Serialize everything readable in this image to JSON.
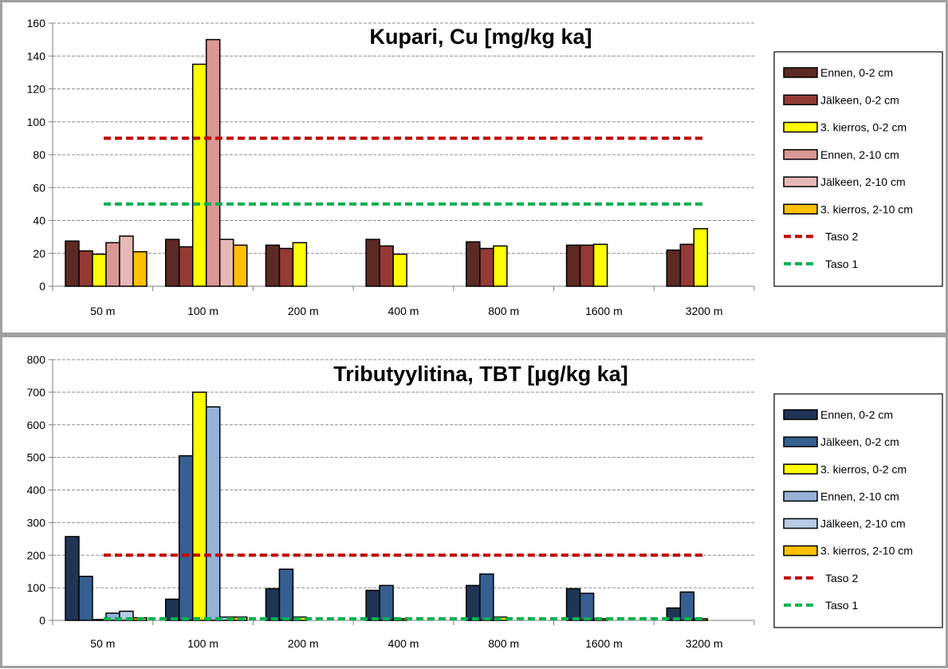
{
  "chart_data": [
    {
      "type": "bar",
      "title": "Kupari, Cu [mg/kg ka]",
      "categories": [
        "50 m",
        "100 m",
        "200 m",
        "400 m",
        "800 m",
        "1600 m",
        "3200 m"
      ],
      "ylim": [
        0,
        160
      ],
      "yticks": [
        0,
        20,
        40,
        60,
        80,
        100,
        120,
        140,
        160
      ],
      "grid": true,
      "legend_position": "right",
      "series": [
        {
          "name": "Ennen, 0-2 cm",
          "color": "#5c2a22",
          "values": [
            27.5,
            28.5,
            25,
            28.5,
            27,
            25,
            22
          ]
        },
        {
          "name": "Jälkeen, 0-2 cm",
          "color": "#953a34",
          "values": [
            21.5,
            24,
            23,
            24.5,
            23,
            25,
            25.5
          ]
        },
        {
          "name": "3. kierros, 0-2 cm",
          "color": "#ffff00",
          "values": [
            19.5,
            135,
            26.5,
            19.5,
            24.5,
            25.5,
            35
          ]
        },
        {
          "name": "Ennen, 2-10 cm",
          "color": "#d99795",
          "values": [
            26.5,
            150,
            null,
            null,
            null,
            null,
            null
          ]
        },
        {
          "name": "Jälkeen, 2-10 cm",
          "color": "#e6b9b8",
          "values": [
            30.5,
            28.5,
            null,
            null,
            null,
            null,
            null
          ]
        },
        {
          "name": "3. kierros, 2-10 cm",
          "color": "#ffc000",
          "values": [
            21,
            25,
            null,
            null,
            null,
            null,
            null
          ]
        }
      ],
      "reference_lines": [
        {
          "name": "Taso 2",
          "color": "#c00000",
          "value": 90
        },
        {
          "name": "Taso 1",
          "color": "#00b050",
          "value": 50
        }
      ]
    },
    {
      "type": "bar",
      "title": "Tributyylitina, TBT [µg/kg ka]",
      "categories": [
        "50 m",
        "100 m",
        "200 m",
        "400 m",
        "800 m",
        "1600 m",
        "3200 m"
      ],
      "ylim": [
        0,
        800
      ],
      "yticks": [
        0,
        100,
        200,
        300,
        400,
        500,
        600,
        700,
        800
      ],
      "grid": true,
      "legend_position": "right",
      "series": [
        {
          "name": "Ennen, 0-2 cm",
          "color": "#1f3555",
          "values": [
            257,
            65,
            97,
            92,
            107,
            97,
            38
          ]
        },
        {
          "name": "Jälkeen, 0-2 cm",
          "color": "#365f91",
          "values": [
            135,
            505,
            157,
            107,
            142,
            83,
            87
          ]
        },
        {
          "name": "3. kierros, 0-2 cm",
          "color": "#ffff00",
          "values": [
            2,
            700,
            10,
            5,
            10,
            5,
            5
          ]
        },
        {
          "name": "Ennen, 2-10 cm",
          "color": "#95b3d7",
          "values": [
            22,
            655,
            null,
            null,
            null,
            null,
            null
          ]
        },
        {
          "name": "Jälkeen, 2-10 cm",
          "color": "#b8cce4",
          "values": [
            28,
            10,
            null,
            null,
            null,
            null,
            null
          ]
        },
        {
          "name": "3. kierros, 2-10 cm",
          "color": "#ffc000",
          "values": [
            8,
            10,
            null,
            null,
            null,
            null,
            null
          ]
        }
      ],
      "reference_lines": [
        {
          "name": "Taso 2",
          "color": "#c00000",
          "value": 200
        },
        {
          "name": "Taso 1",
          "color": "#00b050",
          "value": 5
        }
      ]
    }
  ]
}
